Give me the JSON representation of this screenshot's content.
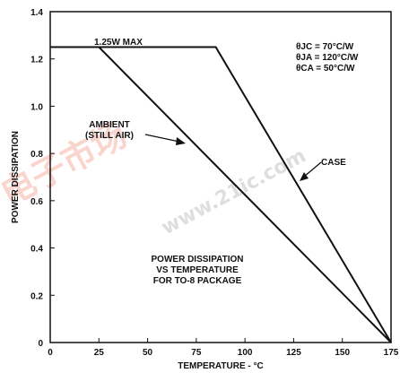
{
  "chart_data": {
    "type": "line",
    "title": "",
    "xlabel": "TEMPERATURE - °C",
    "ylabel": "POWER DISSIPATION",
    "xlim": [
      0,
      175
    ],
    "ylim": [
      0,
      1.4
    ],
    "x_ticks": [
      "0",
      "25",
      "50",
      "75",
      "100",
      "125",
      "150",
      "175"
    ],
    "y_ticks": [
      "0",
      "0.2",
      "0.4",
      "0.6",
      "0.8",
      "1.0",
      "1.2",
      "1.4"
    ],
    "grid": false,
    "series": [
      {
        "name": "AMBIENT (STILL AIR)",
        "x": [
          0,
          25,
          175
        ],
        "y": [
          1.25,
          1.25,
          0
        ]
      },
      {
        "name": "CASE",
        "x": [
          0,
          85,
          175
        ],
        "y": [
          1.25,
          1.25,
          0
        ]
      }
    ],
    "annotations": {
      "max_label": "1.25W MAX",
      "ambient_label_line1": "AMBIENT",
      "ambient_label_line2": "(STILL AIR)",
      "case_label": "CASE",
      "theta_jc": "θJC = 70°C/W",
      "theta_ja": "θJA = 120°C/W",
      "theta_ca": "θCA = 50°C/W",
      "caption_line1": "POWER DISSIPATION",
      "caption_line2": "VS TEMPERATURE",
      "caption_line3": "FOR TO-8 PACKAGE"
    },
    "watermark": {
      "chinese": "电子市场",
      "url": "www.21ic.com"
    }
  }
}
